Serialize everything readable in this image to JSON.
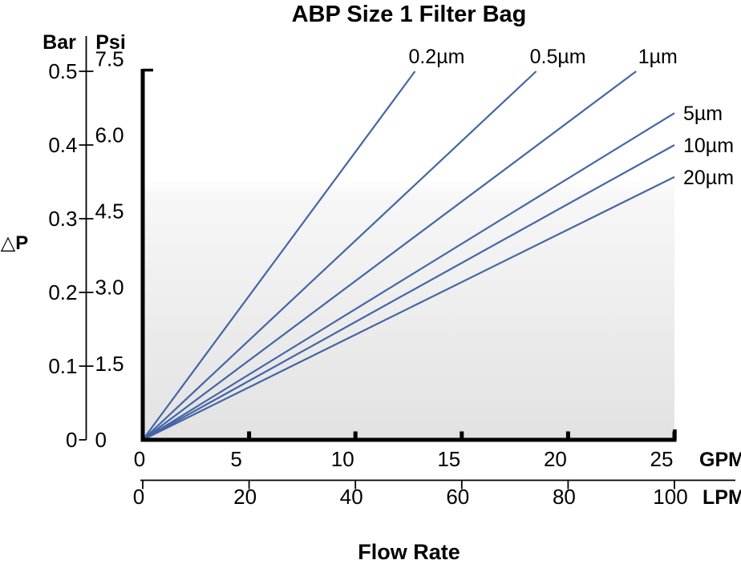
{
  "chart_data": {
    "type": "line",
    "title": "ABP Size 1 Filter Bag",
    "xlabel": "Flow Rate",
    "ylabel": "△P",
    "x_axis": {
      "label": "Flow Rate",
      "scales": [
        {
          "unit": "GPM",
          "ticks": [
            "0",
            "5",
            "10",
            "15",
            "20",
            "25"
          ],
          "range": [
            0,
            25
          ]
        },
        {
          "unit": "LPM",
          "ticks": [
            "0",
            "20",
            "40",
            "60",
            "80",
            "100"
          ],
          "range": [
            0,
            100
          ]
        }
      ]
    },
    "y_axis": {
      "label": "△P",
      "scales": [
        {
          "unit": "Bar",
          "ticks": [
            "0",
            "0.1",
            "0.2",
            "0.3",
            "0.4",
            "0.5"
          ],
          "range": [
            0,
            0.5
          ]
        },
        {
          "unit": "Psi",
          "ticks": [
            "0",
            "1.5",
            "3.0",
            "4.5",
            "6.0",
            "7.5"
          ],
          "range": [
            0,
            7.5
          ]
        }
      ]
    },
    "series": [
      {
        "name": "0.2µm",
        "points_gpm_psi": [
          [
            0,
            0
          ],
          [
            12.8,
            7.5
          ]
        ]
      },
      {
        "name": "0.5µm",
        "points_gpm_psi": [
          [
            0,
            0
          ],
          [
            18.5,
            7.5
          ]
        ]
      },
      {
        "name": "1µm",
        "points_gpm_psi": [
          [
            0,
            0
          ],
          [
            23.2,
            7.5
          ]
        ]
      },
      {
        "name": "5µm",
        "points_gpm_psi": [
          [
            0,
            0
          ],
          [
            25.0,
            6.65
          ]
        ]
      },
      {
        "name": "10µm",
        "points_gpm_psi": [
          [
            0,
            0
          ],
          [
            25.0,
            6.0
          ]
        ]
      },
      {
        "name": "20µm",
        "points_gpm_psi": [
          [
            0,
            0
          ],
          [
            25.0,
            5.35
          ]
        ]
      }
    ],
    "grid": false,
    "legend_position": "line-end-labels",
    "styles": {
      "line_color": "#4465a6",
      "axis_color": "#000000",
      "plot_bg_gradient": [
        "#ffffff",
        "#e2e2e2"
      ]
    }
  }
}
